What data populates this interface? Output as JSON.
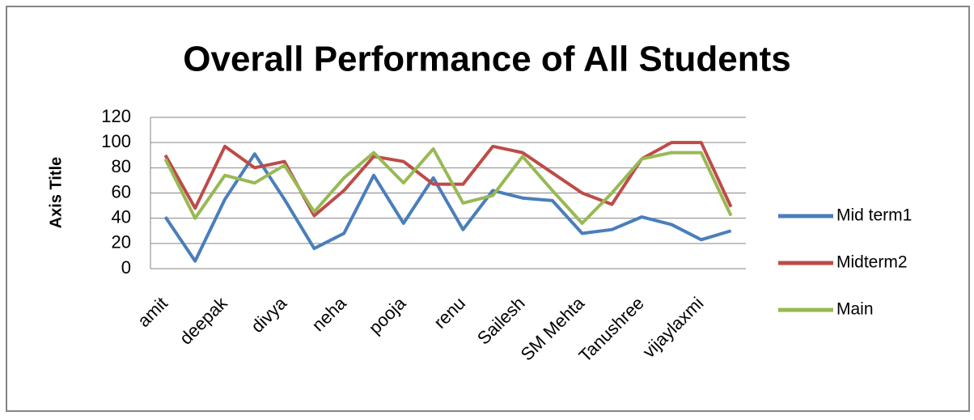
{
  "chart_data": {
    "type": "line",
    "title": "Overall Performance of All Students",
    "y_label": "Axis Title",
    "categories": [
      "amit",
      null,
      "deepak",
      null,
      "divya",
      null,
      "neha",
      null,
      "pooja",
      null,
      "renu",
      null,
      "Sailesh",
      null,
      "SM Mehta",
      null,
      "Tanushree",
      null,
      "vijaylaxmi",
      null
    ],
    "series": [
      {
        "name": "Mid term1",
        "color": "#4a7ebb",
        "values": [
          41,
          6,
          55,
          91,
          55,
          16,
          28,
          74,
          36,
          72,
          31,
          62,
          56,
          54,
          28,
          31,
          41,
          35,
          23,
          30
        ]
      },
      {
        "name": "Midterm2",
        "color": "#be4b48",
        "values": [
          90,
          48,
          97,
          80,
          85,
          42,
          62,
          89,
          85,
          67,
          67,
          97,
          92,
          76,
          60,
          51,
          87,
          100,
          100,
          49
        ]
      },
      {
        "name": "Main",
        "color": "#98b954",
        "values": [
          87,
          40,
          74,
          68,
          82,
          45,
          72,
          92,
          68,
          95,
          52,
          58,
          89,
          62,
          36,
          60,
          87,
          92,
          92,
          42
        ]
      }
    ],
    "ylim": [
      0,
      120
    ],
    "yticks": [
      0,
      20,
      40,
      60,
      80,
      100,
      120
    ],
    "grid": true,
    "legend": "right"
  }
}
